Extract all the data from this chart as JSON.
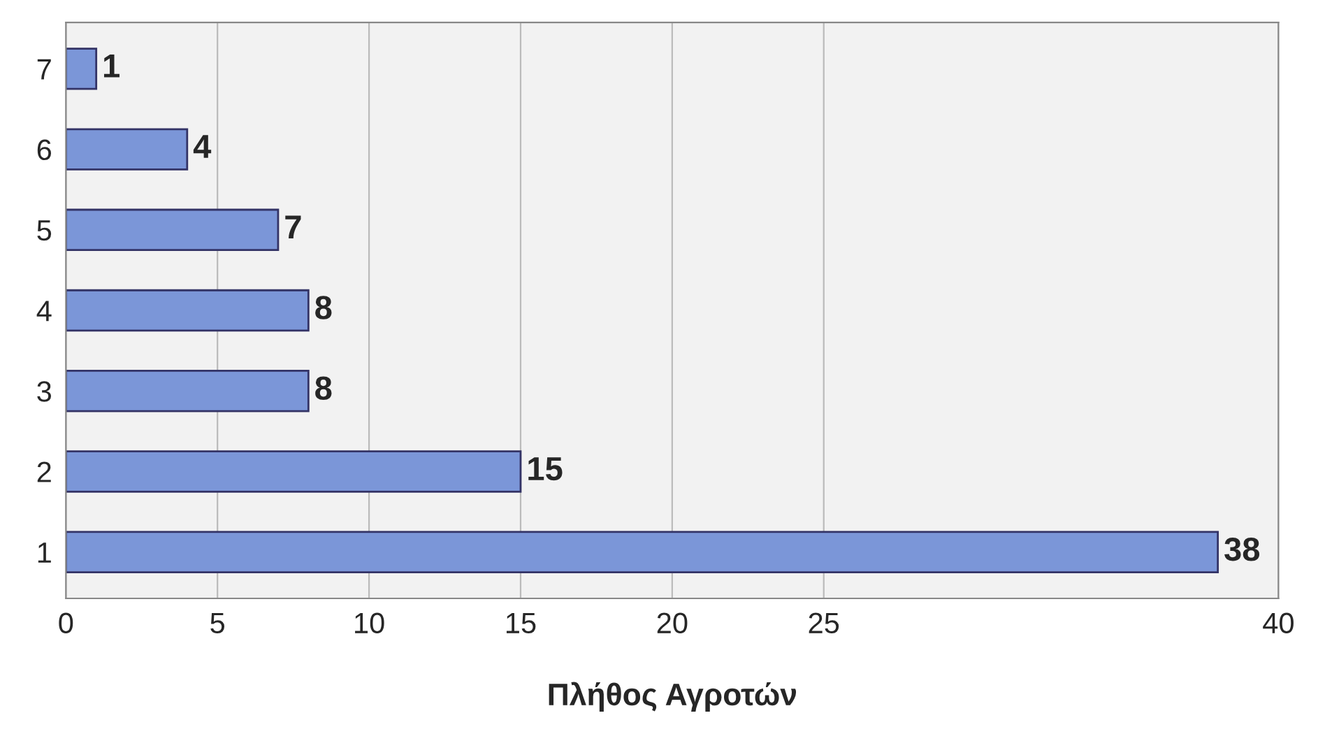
{
  "chart_data": {
    "type": "bar",
    "orientation": "horizontal",
    "xlabel": "Πλήθος Αγροτών",
    "categories": [
      "7",
      "6",
      "5",
      "4",
      "3",
      "2",
      "1"
    ],
    "values": [
      1,
      4,
      7,
      8,
      8,
      15,
      38
    ],
    "color": "#7b96d8",
    "data_labels": true,
    "xlim": [
      0,
      40
    ],
    "xticks": [
      0,
      5,
      10,
      15,
      20,
      25,
      40
    ],
    "grid": "x"
  }
}
